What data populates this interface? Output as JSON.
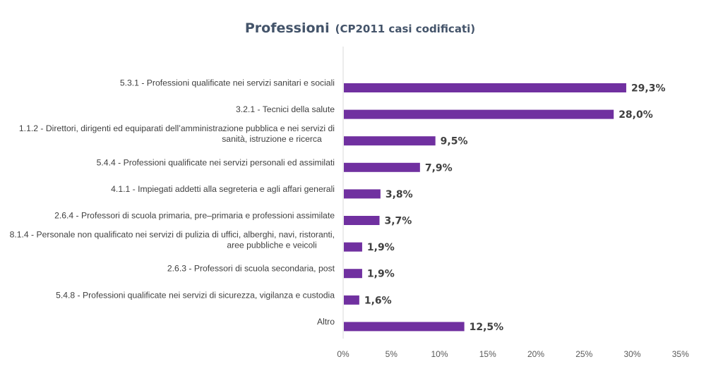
{
  "chart_data": {
    "type": "bar",
    "orientation": "horizontal",
    "title": "Professioni",
    "subtitle": "(CP2011 casi codificati)",
    "categories": [
      "5.3.1 - Professioni qualificate nei servizi sanitari e sociali",
      "3.2.1 - Tecnici della salute",
      "1.1.2 - Direttori, dirigenti ed equiparati dell’amministrazione pubblica e nei servizi di sanità, istruzione e ricerca",
      "5.4.4 - Professioni qualificate nei servizi personali ed assimilati",
      "4.1.1 - Impiegati addetti alla segreteria e agli affari generali",
      "2.6.4 - Professori di scuola primaria, pre–primaria e professioni assimilate",
      "8.1.4 - Personale non qualificato nei servizi di pulizia di uffici, alberghi, navi, ristoranti, aree pubbliche e veicoli",
      "2.6.3 - Professori di scuola secondaria, post",
      "5.4.8 - Professioni qualificate nei servizi di sicurezza, vigilanza e custodia",
      "Altro"
    ],
    "category_lines": [
      [
        "5.3.1 - Professioni qualificate nei servizi sanitari e sociali"
      ],
      [
        "3.2.1 - Tecnici della salute"
      ],
      [
        "1.1.2 - Direttori, dirigenti ed equiparati dell’amministrazione pubblica e nei servizi di",
        "sanità, istruzione e ricerca"
      ],
      [
        "5.4.4 - Professioni qualificate nei servizi personali ed assimilati"
      ],
      [
        "4.1.1 - Impiegati addetti alla segreteria e agli affari generali"
      ],
      [
        "2.6.4 - Professori di scuola primaria, pre–primaria e professioni assimilate"
      ],
      [
        "8.1.4 - Personale non qualificato nei servizi di pulizia di uffici, alberghi, navi, ristoranti,",
        "aree pubbliche e veicoli"
      ],
      [
        "2.6.3 - Professori di scuola secondaria, post"
      ],
      [
        "5.4.8 - Professioni qualificate nei servizi di sicurezza, vigilanza e custodia"
      ],
      [
        "Altro"
      ]
    ],
    "values": [
      29.3,
      28.0,
      9.5,
      7.9,
      3.8,
      3.7,
      1.9,
      1.9,
      1.6,
      12.5
    ],
    "data_labels": [
      "29,3%",
      "28,0%",
      "9,5%",
      "7,9%",
      "3,8%",
      "3,7%",
      "1,9%",
      "1,9%",
      "1,6%",
      "12,5%"
    ],
    "xlim": [
      0,
      35
    ],
    "xticks": [
      0,
      5,
      10,
      15,
      20,
      25,
      30,
      35
    ],
    "xtick_labels": [
      "0%",
      "5%",
      "10%",
      "15%",
      "20%",
      "25%",
      "30%",
      "35%"
    ],
    "xlabel": "",
    "ylabel": "",
    "grid": false,
    "legend": "none",
    "colors": {
      "bar": "#7030a0",
      "title": "#44546a",
      "axis": "#d9d9d9",
      "label_text": "#404040",
      "tick_text": "#595959"
    }
  }
}
